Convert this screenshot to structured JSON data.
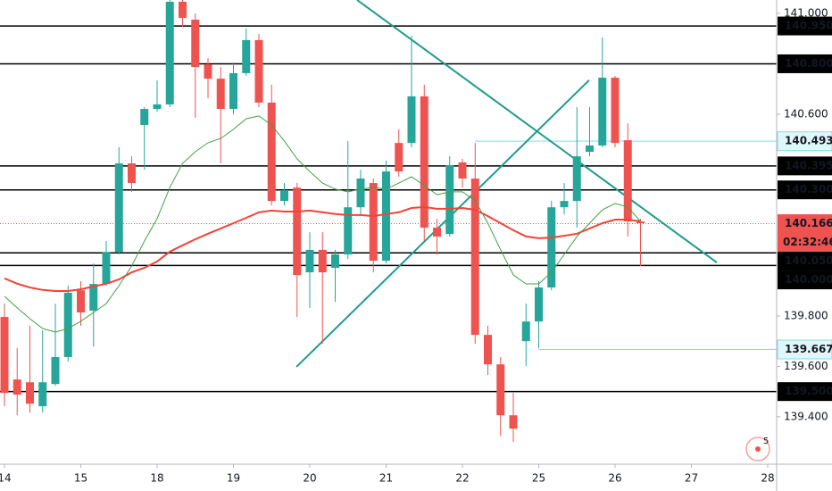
{
  "chart_data": {
    "type": "candlestick",
    "categories": [
      "14",
      null,
      null,
      null,
      null,
      null,
      "15",
      null,
      null,
      null,
      null,
      null,
      "18",
      null,
      null,
      null,
      null,
      null,
      "19",
      null,
      null,
      null,
      null,
      null,
      "20",
      null,
      null,
      null,
      null,
      null,
      "21",
      null,
      null,
      null,
      null,
      null,
      "22",
      null,
      null,
      null,
      null,
      null,
      "25",
      null,
      null,
      null,
      null,
      null,
      "26",
      null,
      null,
      null,
      null,
      null,
      "27",
      null,
      null,
      null,
      null,
      null,
      "28"
    ],
    "open": [
      139.796,
      139.548,
      139.537,
      139.442,
      139.53,
      139.637,
      139.902,
      139.821,
      139.927,
      140.054,
      140.405,
      140.557,
      140.621,
      140.639,
      141.046,
      140.975,
      140.798,
      140.741,
      140.621,
      140.763,
      140.894,
      140.646,
      140.256,
      140.309,
      139.973,
      140.062,
      139.991,
      140.044,
      140.231,
      140.327,
      140.019,
      140.486,
      140.486,
      140.671,
      140.15,
      140.125,
      140.409,
      140.345,
      139.725,
      139.608,
      139.406,
      139.7,
      139.778,
      139.913,
      140.231,
      140.256,
      140.451,
      140.476,
      140.745,
      140.497,
      140.175,
      null,
      null,
      null,
      null,
      null,
      null,
      null,
      null,
      null,
      null
    ],
    "high": [
      139.849,
      139.672,
      139.761,
      139.743,
      139.849,
      139.92,
      139.938,
      140.008,
      140.097,
      140.469,
      140.433,
      140.628,
      140.734,
      141.088,
      141.088,
      141.0,
      140.823,
      140.787,
      140.805,
      140.94,
      140.918,
      140.717,
      140.327,
      140.327,
      140.132,
      140.132,
      140.062,
      140.494,
      140.38,
      140.345,
      140.416,
      140.54,
      140.911,
      140.717,
      140.185,
      140.433,
      140.423,
      140.486,
      139.761,
      139.637,
      139.495,
      139.849,
      139.938,
      140.256,
      140.327,
      140.628,
      140.628,
      140.904,
      140.752,
      140.564,
      140.185,
      null,
      null,
      null,
      null,
      null,
      null,
      null,
      null,
      null,
      null
    ],
    "low": [
      139.442,
      139.406,
      139.417,
      139.417,
      139.523,
      139.619,
      139.761,
      139.679,
      139.92,
      140.044,
      140.292,
      140.38,
      140.61,
      140.628,
      140.947,
      140.586,
      140.663,
      140.405,
      140.6,
      140.752,
      140.628,
      140.239,
      140.239,
      139.796,
      139.831,
      139.69,
      139.856,
      140.026,
      140.203,
      139.973,
      140.008,
      140.352,
      140.469,
      140.097,
      140.044,
      140.115,
      140.309,
      139.69,
      139.566,
      139.325,
      139.3,
      139.601,
      139.672,
      139.902,
      140.203,
      140.15,
      140.433,
      140.469,
      140.469,
      140.115,
      139.998,
      null,
      null,
      null,
      null,
      null,
      null,
      null,
      null,
      null,
      null
    ],
    "close": [
      139.495,
      139.488,
      139.452,
      139.537,
      139.637,
      139.892,
      139.814,
      139.927,
      140.054,
      140.405,
      140.327,
      140.621,
      140.639,
      141.046,
      140.982,
      140.787,
      140.741,
      140.621,
      140.763,
      140.894,
      140.646,
      140.256,
      140.299,
      139.962,
      140.062,
      139.973,
      140.044,
      140.231,
      140.345,
      140.019,
      140.373,
      140.373,
      140.671,
      140.15,
      140.115,
      140.398,
      140.345,
      139.725,
      139.608,
      139.406,
      139.353,
      139.778,
      139.913,
      140.231,
      140.256,
      140.433,
      140.476,
      140.745,
      140.486,
      140.175,
      140.168,
      null,
      null,
      null,
      null,
      null,
      null,
      null,
      null,
      null,
      null
    ],
    "up_color": "#26a69a",
    "down_color": "#ef5350",
    "moving_averages": [
      {
        "color": "#f44336",
        "width": 2,
        "values": [
          139.949,
          139.928,
          139.913,
          139.903,
          139.899,
          139.899,
          139.906,
          139.917,
          139.928,
          139.945,
          139.973,
          139.991,
          140.016,
          140.055,
          140.08,
          140.104,
          140.126,
          140.147,
          140.168,
          140.189,
          140.211,
          140.218,
          140.214,
          140.214,
          140.218,
          140.211,
          140.204,
          140.2,
          140.2,
          140.196,
          140.204,
          140.211,
          140.228,
          140.232,
          140.225,
          140.225,
          140.228,
          140.221,
          140.196,
          140.168,
          140.14,
          140.115,
          140.108,
          140.111,
          140.118,
          140.126,
          140.147,
          140.168,
          140.182,
          140.182,
          140.175,
          null,
          null,
          null,
          null,
          null,
          null,
          null,
          null,
          null,
          null
        ]
      },
      {
        "color": "#43a047",
        "width": 1,
        "values": [
          139.878,
          139.832,
          139.789,
          139.75,
          139.736,
          139.75,
          139.779,
          139.814,
          139.849,
          139.92,
          139.998,
          140.097,
          140.186,
          140.31,
          140.405,
          140.451,
          140.487,
          140.504,
          140.54,
          140.582,
          140.593,
          140.557,
          140.494,
          140.423,
          140.373,
          140.327,
          140.303,
          140.292,
          140.303,
          140.31,
          140.303,
          140.327,
          140.352,
          140.317,
          140.281,
          140.292,
          140.292,
          140.257,
          140.168,
          140.062,
          139.963,
          139.927,
          139.927,
          139.973,
          140.044,
          140.115,
          140.168,
          140.221,
          140.246,
          140.232,
          140.175,
          null,
          null,
          null,
          null,
          null,
          null,
          null,
          null,
          null,
          null
        ]
      }
    ],
    "trend_lines": [
      {
        "color": "#1e9c8a",
        "x": [
          27.72,
          56.0
        ],
        "y": [
          141.053,
          140.012
        ]
      },
      {
        "color": "#1e9c8a",
        "x": [
          22.95,
          45.96
        ],
        "y": [
          139.598,
          140.735
        ]
      }
    ],
    "levels": [
      {
        "value": 140.95,
        "label": "140.950"
      },
      {
        "value": 140.8,
        "label": "140.800"
      },
      {
        "value": 140.395,
        "label": "140.395"
      },
      {
        "value": 140.3,
        "label": "140.300"
      },
      {
        "value": 140.05,
        "label": "140.050"
      },
      {
        "value": 140.0,
        "label": "140.000"
      },
      {
        "value": 139.5,
        "label": "139.500"
      }
    ],
    "highlight_levels": [
      {
        "value": 140.493,
        "label": "140.493",
        "start": 37
      },
      {
        "value": 139.667,
        "label": "139.667",
        "start": 42
      }
    ],
    "last_price": {
      "value": 140.166,
      "label": "140.166",
      "countdown": "02:32:46"
    },
    "ylim": [
      139.212,
      141.053
    ],
    "yticks": [
      {
        "value": 141.0,
        "label": "141.000"
      },
      {
        "value": 140.6,
        "label": "140.600"
      },
      {
        "value": 139.8,
        "label": "139.800"
      },
      {
        "value": 139.6,
        "label": "139.600"
      },
      {
        "value": 139.4,
        "label": "139.400"
      }
    ],
    "badge": "5"
  }
}
